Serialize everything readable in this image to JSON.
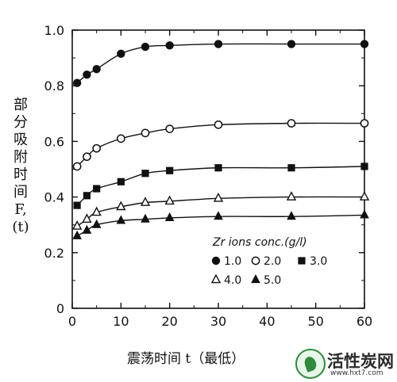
{
  "chart_data": {
    "type": "scatter",
    "ylabel": "部分吸附时间F,(t)",
    "xlabel": "震荡时间 t（最低）",
    "xlim": [
      0,
      60
    ],
    "ylim": [
      0,
      1.0
    ],
    "xticks": [
      0,
      10,
      20,
      30,
      40,
      50,
      60
    ],
    "yticks": [
      "0",
      "0.2",
      "0.4",
      "0.6",
      "0.8",
      "1.0"
    ],
    "legend": {
      "title": "Zr ions conc.(g/l)",
      "placement": "bottom-right",
      "entries": [
        {
          "label": "1.0",
          "marker": "filled-circle"
        },
        {
          "label": "2.0",
          "marker": "open-circle"
        },
        {
          "label": "3.0",
          "marker": "filled-square"
        },
        {
          "label": "4.0",
          "marker": "open-triangle"
        },
        {
          "label": "5.0",
          "marker": "filled-triangle"
        }
      ]
    },
    "series": [
      {
        "name": "1.0",
        "marker": "filled-circle",
        "x": [
          1,
          3,
          5,
          10,
          15,
          20,
          30,
          45,
          60
        ],
        "y": [
          0.81,
          0.84,
          0.86,
          0.915,
          0.94,
          0.945,
          0.95,
          0.95,
          0.95
        ]
      },
      {
        "name": "2.0",
        "marker": "open-circle",
        "x": [
          1,
          3,
          5,
          10,
          15,
          20,
          30,
          45,
          60
        ],
        "y": [
          0.51,
          0.545,
          0.575,
          0.61,
          0.63,
          0.645,
          0.66,
          0.665,
          0.665
        ]
      },
      {
        "name": "3.0",
        "marker": "filled-square",
        "x": [
          1,
          3,
          5,
          10,
          15,
          20,
          30,
          45,
          60
        ],
        "y": [
          0.37,
          0.405,
          0.43,
          0.455,
          0.485,
          0.495,
          0.505,
          0.505,
          0.51
        ]
      },
      {
        "name": "4.0",
        "marker": "open-triangle",
        "x": [
          1,
          3,
          5,
          10,
          15,
          20,
          30,
          45,
          60
        ],
        "y": [
          0.295,
          0.32,
          0.345,
          0.365,
          0.38,
          0.385,
          0.395,
          0.4,
          0.4
        ]
      },
      {
        "name": "5.0",
        "marker": "filled-triangle",
        "x": [
          1,
          3,
          5,
          10,
          15,
          20,
          30,
          45,
          60
        ],
        "y": [
          0.26,
          0.28,
          0.3,
          0.315,
          0.32,
          0.325,
          0.33,
          0.33,
          0.335
        ]
      }
    ]
  },
  "watermark": {
    "name": "活性炭网",
    "url": "www.hxt7.com",
    "logo_icon": "leaf-logo-icon",
    "color": "#2e8b3a"
  }
}
